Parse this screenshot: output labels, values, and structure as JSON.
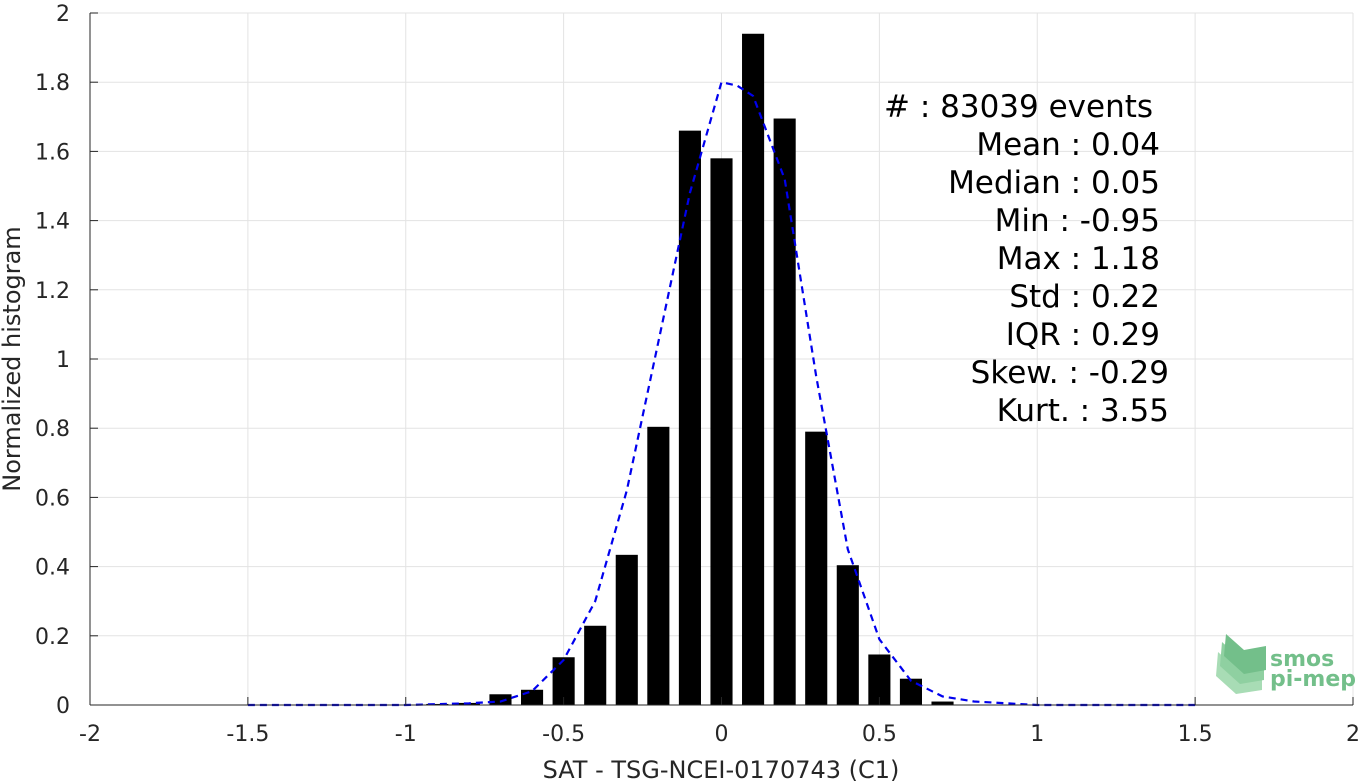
{
  "chart_data": {
    "type": "bar",
    "xlabel": "SAT - TSG-NCEI-0170743 (C1)",
    "ylabel": "Normalized histogram",
    "xlim": [
      -2,
      2
    ],
    "ylim": [
      0,
      2
    ],
    "xticks": [
      -2,
      -1.5,
      -1,
      -0.5,
      0,
      0.5,
      1,
      1.5,
      2
    ],
    "xtick_labels": [
      "-2",
      "-1.5",
      "-1",
      "-0.5",
      "0",
      "0.5",
      "1",
      "1.5",
      "2"
    ],
    "yticks": [
      0,
      0.2,
      0.4,
      0.6,
      0.8,
      1,
      1.2,
      1.4,
      1.6,
      1.8,
      2
    ],
    "ytick_labels": [
      "0",
      "0.2",
      "0.4",
      "0.6",
      "0.8",
      "1",
      "1.2",
      "1.4",
      "1.6",
      "1.8",
      "2"
    ],
    "grid": true,
    "bar_width": 0.07,
    "bars": {
      "x": [
        -0.9,
        -0.8,
        -0.7,
        -0.6,
        -0.5,
        -0.4,
        -0.3,
        -0.2,
        -0.1,
        0.0,
        0.1,
        0.2,
        0.3,
        0.4,
        0.5,
        0.6,
        0.7
      ],
      "values": [
        0.003,
        0.006,
        0.031,
        0.044,
        0.138,
        0.229,
        0.434,
        0.804,
        1.66,
        1.58,
        1.94,
        1.695,
        0.79,
        0.404,
        0.146,
        0.076,
        0.01
      ],
      "color": "#000000"
    },
    "fit_curve": {
      "style": "dashed",
      "color": "#0000ee",
      "x": [
        -1.5,
        -1.0,
        -0.8,
        -0.7,
        -0.6,
        -0.5,
        -0.4,
        -0.3,
        -0.2,
        -0.1,
        0.0,
        0.05,
        0.1,
        0.2,
        0.3,
        0.4,
        0.5,
        0.6,
        0.7,
        0.8,
        1.0,
        1.5
      ],
      "y": [
        0.0,
        0.0,
        0.005,
        0.01,
        0.04,
        0.13,
        0.3,
        0.62,
        1.05,
        1.48,
        1.8,
        1.79,
        1.76,
        1.52,
        0.95,
        0.45,
        0.19,
        0.07,
        0.025,
        0.01,
        0.0,
        0.0
      ]
    },
    "annotations": [
      "#  : 83039 events",
      "Mean : 0.04",
      "Median : 0.05",
      "Min : -0.95",
      "Max : 1.18",
      "Std : 0.22",
      "IQR : 0.29",
      "Skew. : -0.29",
      "Kurt. : 3.55"
    ],
    "logo": {
      "line1": "smos",
      "line2": "pi-mep",
      "color": "#73bf8a"
    }
  }
}
